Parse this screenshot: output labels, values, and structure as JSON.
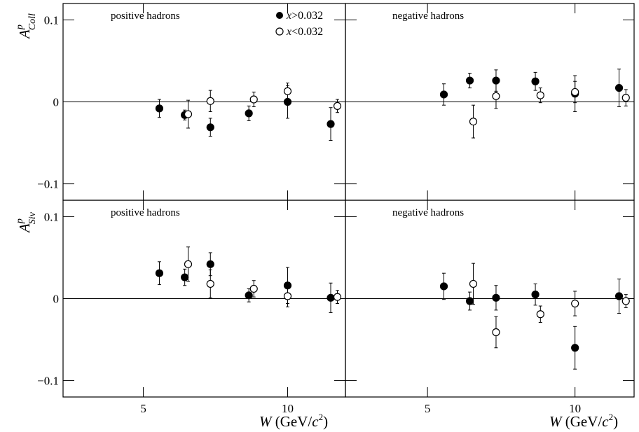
{
  "figure": {
    "ylabel_top": {
      "base": "A",
      "sup": "p",
      "sub": "Coll"
    },
    "ylabel_bottom": {
      "base": "A",
      "sup": "p",
      "sub": "Siv"
    },
    "xlabel": {
      "var": "W",
      "unit_open": " (GeV/",
      "unit_c": "c",
      "unit_pow": "2",
      "unit_close": ")"
    }
  },
  "legend": {
    "entries": [
      {
        "marker": "filled-circle",
        "var": "x",
        "text": ">0.032"
      },
      {
        "marker": "open-circle",
        "var": "x",
        "text": "<0.032"
      }
    ]
  },
  "chart_data": [
    {
      "type": "scatter",
      "title": "positive hadrons",
      "ylabel": "A^p_Coll",
      "xlabel": "W (GeV/c^2)",
      "xlim": [
        3.4,
        13.2
      ],
      "ylim": [
        -0.12,
        0.12
      ],
      "x_ticks": [
        {
          "value": 5,
          "label": "5"
        },
        {
          "value": 10,
          "label": "10"
        }
      ],
      "y_ticks": [
        {
          "value": -0.1,
          "label": "−0.1"
        },
        {
          "value": 0,
          "label": "0"
        },
        {
          "value": 0.1,
          "label": "0.1"
        }
      ],
      "show_x_tick_labels": false,
      "show_y_tick_labels": true,
      "zero_line": true,
      "series": [
        {
          "name": "x>0.032",
          "marker": "filled",
          "points": [
            {
              "x": 5.4,
              "y": -0.008,
              "err": 0.011
            },
            {
              "x": 6.1,
              "y": -0.016,
              "err": 0.006
            },
            {
              "x": 6.9,
              "y": -0.031,
              "err": 0.011
            },
            {
              "x": 8.3,
              "y": -0.014,
              "err": 0.009
            },
            {
              "x": 10.0,
              "y": 0.0,
              "err": 0.02
            },
            {
              "x": 12.3,
              "y": -0.027,
              "err": 0.02
            }
          ]
        },
        {
          "name": "x<0.032",
          "marker": "open",
          "points": [
            {
              "x": 6.2,
              "y": -0.015,
              "err": 0.017
            },
            {
              "x": 6.9,
              "y": 0.001,
              "err": 0.013
            },
            {
              "x": 8.5,
              "y": 0.003,
              "err": 0.009
            },
            {
              "x": 10.0,
              "y": 0.013,
              "err": 0.01
            },
            {
              "x": 12.7,
              "y": -0.005,
              "err": 0.008
            }
          ]
        }
      ]
    },
    {
      "type": "scatter",
      "title": "negative hadrons",
      "ylabel": "A^p_Coll",
      "xlabel": "W (GeV/c^2)",
      "xlim": [
        3.4,
        13.2
      ],
      "ylim": [
        -0.12,
        0.12
      ],
      "x_ticks": [
        {
          "value": 5,
          "label": "5"
        },
        {
          "value": 10,
          "label": "10"
        }
      ],
      "y_ticks": [
        {
          "value": -0.1,
          "label": "−0.1"
        },
        {
          "value": 0,
          "label": "0"
        },
        {
          "value": 0.1,
          "label": "0.1"
        }
      ],
      "show_x_tick_labels": false,
      "show_y_tick_labels": false,
      "zero_line": true,
      "series": [
        {
          "name": "x>0.032",
          "marker": "filled",
          "points": [
            {
              "x": 5.4,
              "y": 0.009,
              "err": 0.013
            },
            {
              "x": 6.1,
              "y": 0.026,
              "err": 0.009
            },
            {
              "x": 6.9,
              "y": 0.026,
              "err": 0.013
            },
            {
              "x": 8.3,
              "y": 0.025,
              "err": 0.011
            },
            {
              "x": 10.0,
              "y": 0.01,
              "err": 0.022
            },
            {
              "x": 12.3,
              "y": 0.017,
              "err": 0.023
            }
          ]
        },
        {
          "name": "x<0.032",
          "marker": "open",
          "points": [
            {
              "x": 6.2,
              "y": -0.024,
              "err": 0.02
            },
            {
              "x": 6.9,
              "y": 0.007,
              "err": 0.015
            },
            {
              "x": 8.5,
              "y": 0.008,
              "err": 0.009
            },
            {
              "x": 10.0,
              "y": 0.012,
              "err": 0.013
            },
            {
              "x": 12.7,
              "y": 0.005,
              "err": 0.01
            }
          ]
        }
      ]
    },
    {
      "type": "scatter",
      "title": "positive hadrons",
      "ylabel": "A^p_Siv",
      "xlabel": "W (GeV/c^2)",
      "xlim": [
        3.4,
        13.2
      ],
      "ylim": [
        -0.12,
        0.12
      ],
      "x_ticks": [
        {
          "value": 5,
          "label": "5"
        },
        {
          "value": 10,
          "label": "10"
        }
      ],
      "y_ticks": [
        {
          "value": -0.1,
          "label": "−0.1"
        },
        {
          "value": 0,
          "label": "0"
        },
        {
          "value": 0.1,
          "label": "0.1"
        }
      ],
      "show_x_tick_labels": true,
      "show_y_tick_labels": true,
      "zero_line": true,
      "series": [
        {
          "name": "x>0.032",
          "marker": "filled",
          "points": [
            {
              "x": 5.4,
              "y": 0.031,
              "err": 0.014
            },
            {
              "x": 6.1,
              "y": 0.026,
              "err": 0.01
            },
            {
              "x": 6.9,
              "y": 0.042,
              "err": 0.014
            },
            {
              "x": 8.3,
              "y": 0.004,
              "err": 0.008
            },
            {
              "x": 10.0,
              "y": 0.016,
              "err": 0.022
            },
            {
              "x": 12.3,
              "y": 0.001,
              "err": 0.018
            }
          ]
        },
        {
          "name": "x<0.032",
          "marker": "open",
          "points": [
            {
              "x": 6.2,
              "y": 0.042,
              "err": 0.021
            },
            {
              "x": 6.9,
              "y": 0.018,
              "err": 0.017
            },
            {
              "x": 8.5,
              "y": 0.012,
              "err": 0.01
            },
            {
              "x": 10.0,
              "y": 0.003,
              "err": 0.013
            },
            {
              "x": 12.7,
              "y": 0.002,
              "err": 0.008
            }
          ]
        }
      ]
    },
    {
      "type": "scatter",
      "title": "negative hadrons",
      "ylabel": "A^p_Siv",
      "xlabel": "W (GeV/c^2)",
      "xlim": [
        3.4,
        13.2
      ],
      "ylim": [
        -0.12,
        0.12
      ],
      "x_ticks": [
        {
          "value": 5,
          "label": "5"
        },
        {
          "value": 10,
          "label": "10"
        }
      ],
      "y_ticks": [
        {
          "value": -0.1,
          "label": "−0.1"
        },
        {
          "value": 0,
          "label": "0"
        },
        {
          "value": 0.1,
          "label": "0.1"
        }
      ],
      "show_x_tick_labels": true,
      "show_y_tick_labels": false,
      "zero_line": true,
      "series": [
        {
          "name": "x>0.032",
          "marker": "filled",
          "points": [
            {
              "x": 5.4,
              "y": 0.015,
              "err": 0.016
            },
            {
              "x": 6.1,
              "y": -0.003,
              "err": 0.011
            },
            {
              "x": 6.9,
              "y": 0.001,
              "err": 0.015
            },
            {
              "x": 8.3,
              "y": 0.005,
              "err": 0.013
            },
            {
              "x": 10.0,
              "y": -0.06,
              "err": 0.026
            },
            {
              "x": 12.3,
              "y": 0.003,
              "err": 0.021
            }
          ]
        },
        {
          "name": "x<0.032",
          "marker": "open",
          "points": [
            {
              "x": 6.2,
              "y": 0.018,
              "err": 0.025
            },
            {
              "x": 6.9,
              "y": -0.041,
              "err": 0.019
            },
            {
              "x": 8.5,
              "y": -0.019,
              "err": 0.01
            },
            {
              "x": 10.0,
              "y": -0.006,
              "err": 0.015
            },
            {
              "x": 12.7,
              "y": -0.003,
              "err": 0.008
            }
          ]
        }
      ]
    }
  ]
}
